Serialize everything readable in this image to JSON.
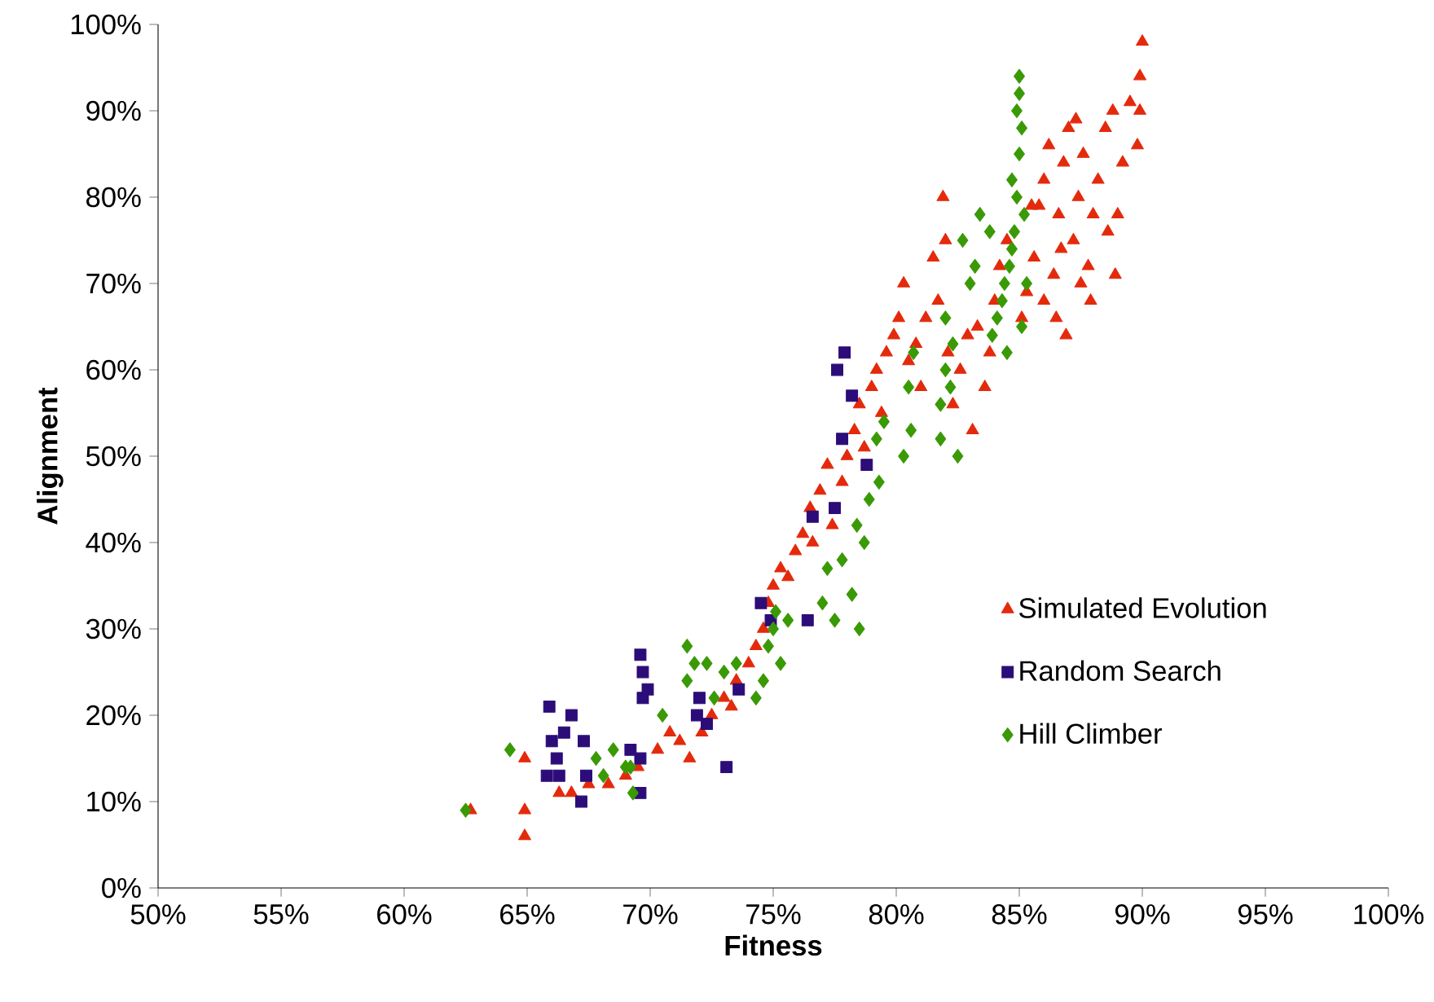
{
  "chart_data": {
    "type": "scatter",
    "xlabel": "Fitness",
    "ylabel": "Alignment",
    "xlim": [
      50,
      100
    ],
    "ylim": [
      0,
      100
    ],
    "xticks": [
      {
        "value": 50,
        "label": "50%"
      },
      {
        "value": 55,
        "label": "55%"
      },
      {
        "value": 60,
        "label": "60%"
      },
      {
        "value": 65,
        "label": "65%"
      },
      {
        "value": 70,
        "label": "70%"
      },
      {
        "value": 75,
        "label": "75%"
      },
      {
        "value": 80,
        "label": "80%"
      },
      {
        "value": 85,
        "label": "85%"
      },
      {
        "value": 90,
        "label": "90%"
      },
      {
        "value": 95,
        "label": "95%"
      },
      {
        "value": 100,
        "label": "100%"
      }
    ],
    "yticks": [
      {
        "value": 0,
        "label": "0%"
      },
      {
        "value": 10,
        "label": "10%"
      },
      {
        "value": 20,
        "label": "20%"
      },
      {
        "value": 30,
        "label": "30%"
      },
      {
        "value": 40,
        "label": "40%"
      },
      {
        "value": 50,
        "label": "50%"
      },
      {
        "value": 60,
        "label": "60%"
      },
      {
        "value": 70,
        "label": "70%"
      },
      {
        "value": 80,
        "label": "80%"
      },
      {
        "value": 90,
        "label": "90%"
      },
      {
        "value": 100,
        "label": "100%"
      }
    ],
    "grid": false,
    "legend": "right",
    "series": [
      {
        "name": "Simulated Evolution",
        "color": "#e42a0c",
        "marker": "triangle",
        "x": [
          62.7,
          64.9,
          64.9,
          64.9,
          66.3,
          66.8,
          67.5,
          68.3,
          69.0,
          69.5,
          70.3,
          70.8,
          71.2,
          71.6,
          72.1,
          72.5,
          73.0,
          73.3,
          73.5,
          74.0,
          74.3,
          74.6,
          74.8,
          75.0,
          75.3,
          75.6,
          75.9,
          76.2,
          76.5,
          76.6,
          76.9,
          77.2,
          77.4,
          77.8,
          78.0,
          78.3,
          78.5,
          78.7,
          79.0,
          79.2,
          79.4,
          79.6,
          79.9,
          80.1,
          80.3,
          80.5,
          80.8,
          81.0,
          81.2,
          81.5,
          81.7,
          81.9,
          82.0,
          82.1,
          82.3,
          82.6,
          82.9,
          83.1,
          83.3,
          83.6,
          83.8,
          84.0,
          84.2,
          84.5,
          85.1,
          85.3,
          85.6,
          85.8,
          86.0,
          86.2,
          86.4,
          86.6,
          86.8,
          86.9,
          87.0,
          87.2,
          87.4,
          87.6,
          87.8,
          87.9,
          88.2,
          88.5,
          88.8,
          89.0,
          89.2,
          89.5,
          89.8,
          90.0,
          89.9,
          89.9,
          88.9,
          88.6,
          87.3,
          86.5,
          86.0,
          88.0,
          87.5,
          86.7,
          85.5
        ],
        "values": [
          9,
          6,
          9,
          15,
          11,
          11,
          12,
          12,
          13,
          14,
          16,
          18,
          17,
          15,
          18,
          20,
          22,
          21,
          24,
          26,
          28,
          30,
          33,
          35,
          37,
          36,
          39,
          41,
          44,
          40,
          46,
          49,
          42,
          47,
          50,
          53,
          56,
          51,
          58,
          60,
          55,
          62,
          64,
          66,
          70,
          61,
          63,
          58,
          66,
          73,
          68,
          80,
          75,
          62,
          56,
          60,
          64,
          53,
          65,
          58,
          62,
          68,
          72,
          75,
          66,
          69,
          73,
          79,
          82,
          86,
          71,
          78,
          84,
          64,
          88,
          75,
          80,
          85,
          72,
          68,
          82,
          88,
          90,
          78,
          84,
          91,
          86,
          98,
          94,
          90,
          71,
          76,
          89,
          66,
          68,
          78,
          70,
          74,
          79
        ]
      },
      {
        "name": "Random Search",
        "color": "#2c0c78",
        "marker": "square",
        "x": [
          65.9,
          66.0,
          66.2,
          66.5,
          66.8,
          66.3,
          65.8,
          67.3,
          67.4,
          67.2,
          69.6,
          69.7,
          69.7,
          69.9,
          69.6,
          69.6,
          71.9,
          72.3,
          72.0,
          73.1,
          73.6,
          74.5,
          74.9,
          76.4,
          76.6,
          77.5,
          77.6,
          77.9,
          78.2,
          77.8,
          78.8,
          69.2
        ],
        "values": [
          21,
          17,
          15,
          18,
          20,
          13,
          13,
          17,
          13,
          10,
          27,
          25,
          22,
          23,
          15,
          11,
          20,
          19,
          22,
          14,
          23,
          33,
          31,
          31,
          43,
          44,
          60,
          62,
          57,
          52,
          49,
          16
        ]
      },
      {
        "name": "Hill Climber",
        "color": "#3a9a06",
        "marker": "diamond",
        "x": [
          62.5,
          64.3,
          68.1,
          67.8,
          68.5,
          69.0,
          69.3,
          69.2,
          70.5,
          71.5,
          71.8,
          71.5,
          72.3,
          72.6,
          73.0,
          73.5,
          74.3,
          74.6,
          74.8,
          75.1,
          75.3,
          75.0,
          75.6,
          77.0,
          77.2,
          77.5,
          77.8,
          78.2,
          78.5,
          78.4,
          78.7,
          78.9,
          79.3,
          79.2,
          79.5,
          80.3,
          80.6,
          80.5,
          80.7,
          81.8,
          81.8,
          82.0,
          82.2,
          82.3,
          82.0,
          82.5,
          82.7,
          83.2,
          83.4,
          83.8,
          84.1,
          84.3,
          84.4,
          84.6,
          84.7,
          84.8,
          84.9,
          85.0,
          84.9,
          85.0,
          85.1,
          85.2,
          85.3,
          85.1,
          84.5,
          83.9,
          83.0,
          84.7,
          85.0
        ],
        "values": [
          9,
          16,
          13,
          15,
          16,
          14,
          11,
          14,
          20,
          28,
          26,
          24,
          26,
          22,
          25,
          26,
          22,
          24,
          28,
          32,
          26,
          30,
          31,
          33,
          37,
          31,
          38,
          34,
          30,
          42,
          40,
          45,
          47,
          52,
          54,
          50,
          53,
          58,
          62,
          52,
          56,
          60,
          58,
          63,
          66,
          50,
          75,
          72,
          78,
          76,
          66,
          68,
          70,
          72,
          74,
          76,
          80,
          85,
          90,
          94,
          88,
          78,
          70,
          65,
          62,
          64,
          70,
          82,
          92
        ]
      }
    ]
  }
}
